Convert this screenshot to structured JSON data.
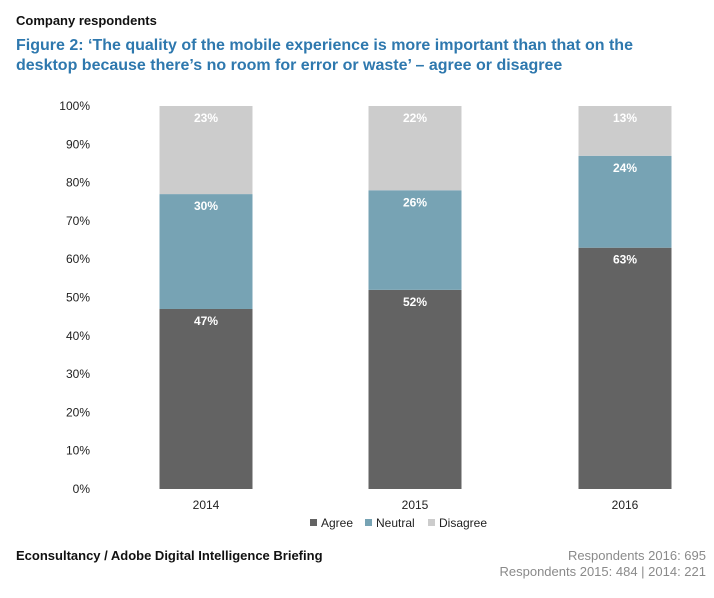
{
  "header": {
    "label": "Company respondents",
    "title_line1": "Figure 2: ‘The quality of the mobile experience is more important than that on the",
    "title_line2": "desktop because there’s no room for error or waste’ – agree or disagree"
  },
  "footer": {
    "source": "Econsultancy / Adobe Digital Intelligence Briefing",
    "respondents_line1": "Respondents 2016: 695",
    "respondents_line2": "Respondents 2015: 484 | 2014: 221"
  },
  "chart_data": {
    "type": "bar",
    "stacked": true,
    "categories": [
      "2014",
      "2015",
      "2016"
    ],
    "series": [
      {
        "name": "Agree",
        "values": [
          47,
          52,
          63
        ],
        "color": "#636363",
        "labels": [
          "47%",
          "52%",
          "63%"
        ]
      },
      {
        "name": "Neutral",
        "values": [
          30,
          26,
          24
        ],
        "color": "#77a3b4",
        "labels": [
          "30%",
          "26%",
          "24%"
        ]
      },
      {
        "name": "Disagree",
        "values": [
          23,
          22,
          13
        ],
        "color": "#cccccc",
        "labels": [
          "23%",
          "22%",
          "13%"
        ]
      }
    ],
    "ylim": [
      0,
      100
    ],
    "yticks": [
      "0%",
      "10%",
      "20%",
      "30%",
      "40%",
      "50%",
      "60%",
      "70%",
      "80%",
      "90%",
      "100%"
    ],
    "grid": false,
    "legend_position": "bottom-center"
  }
}
